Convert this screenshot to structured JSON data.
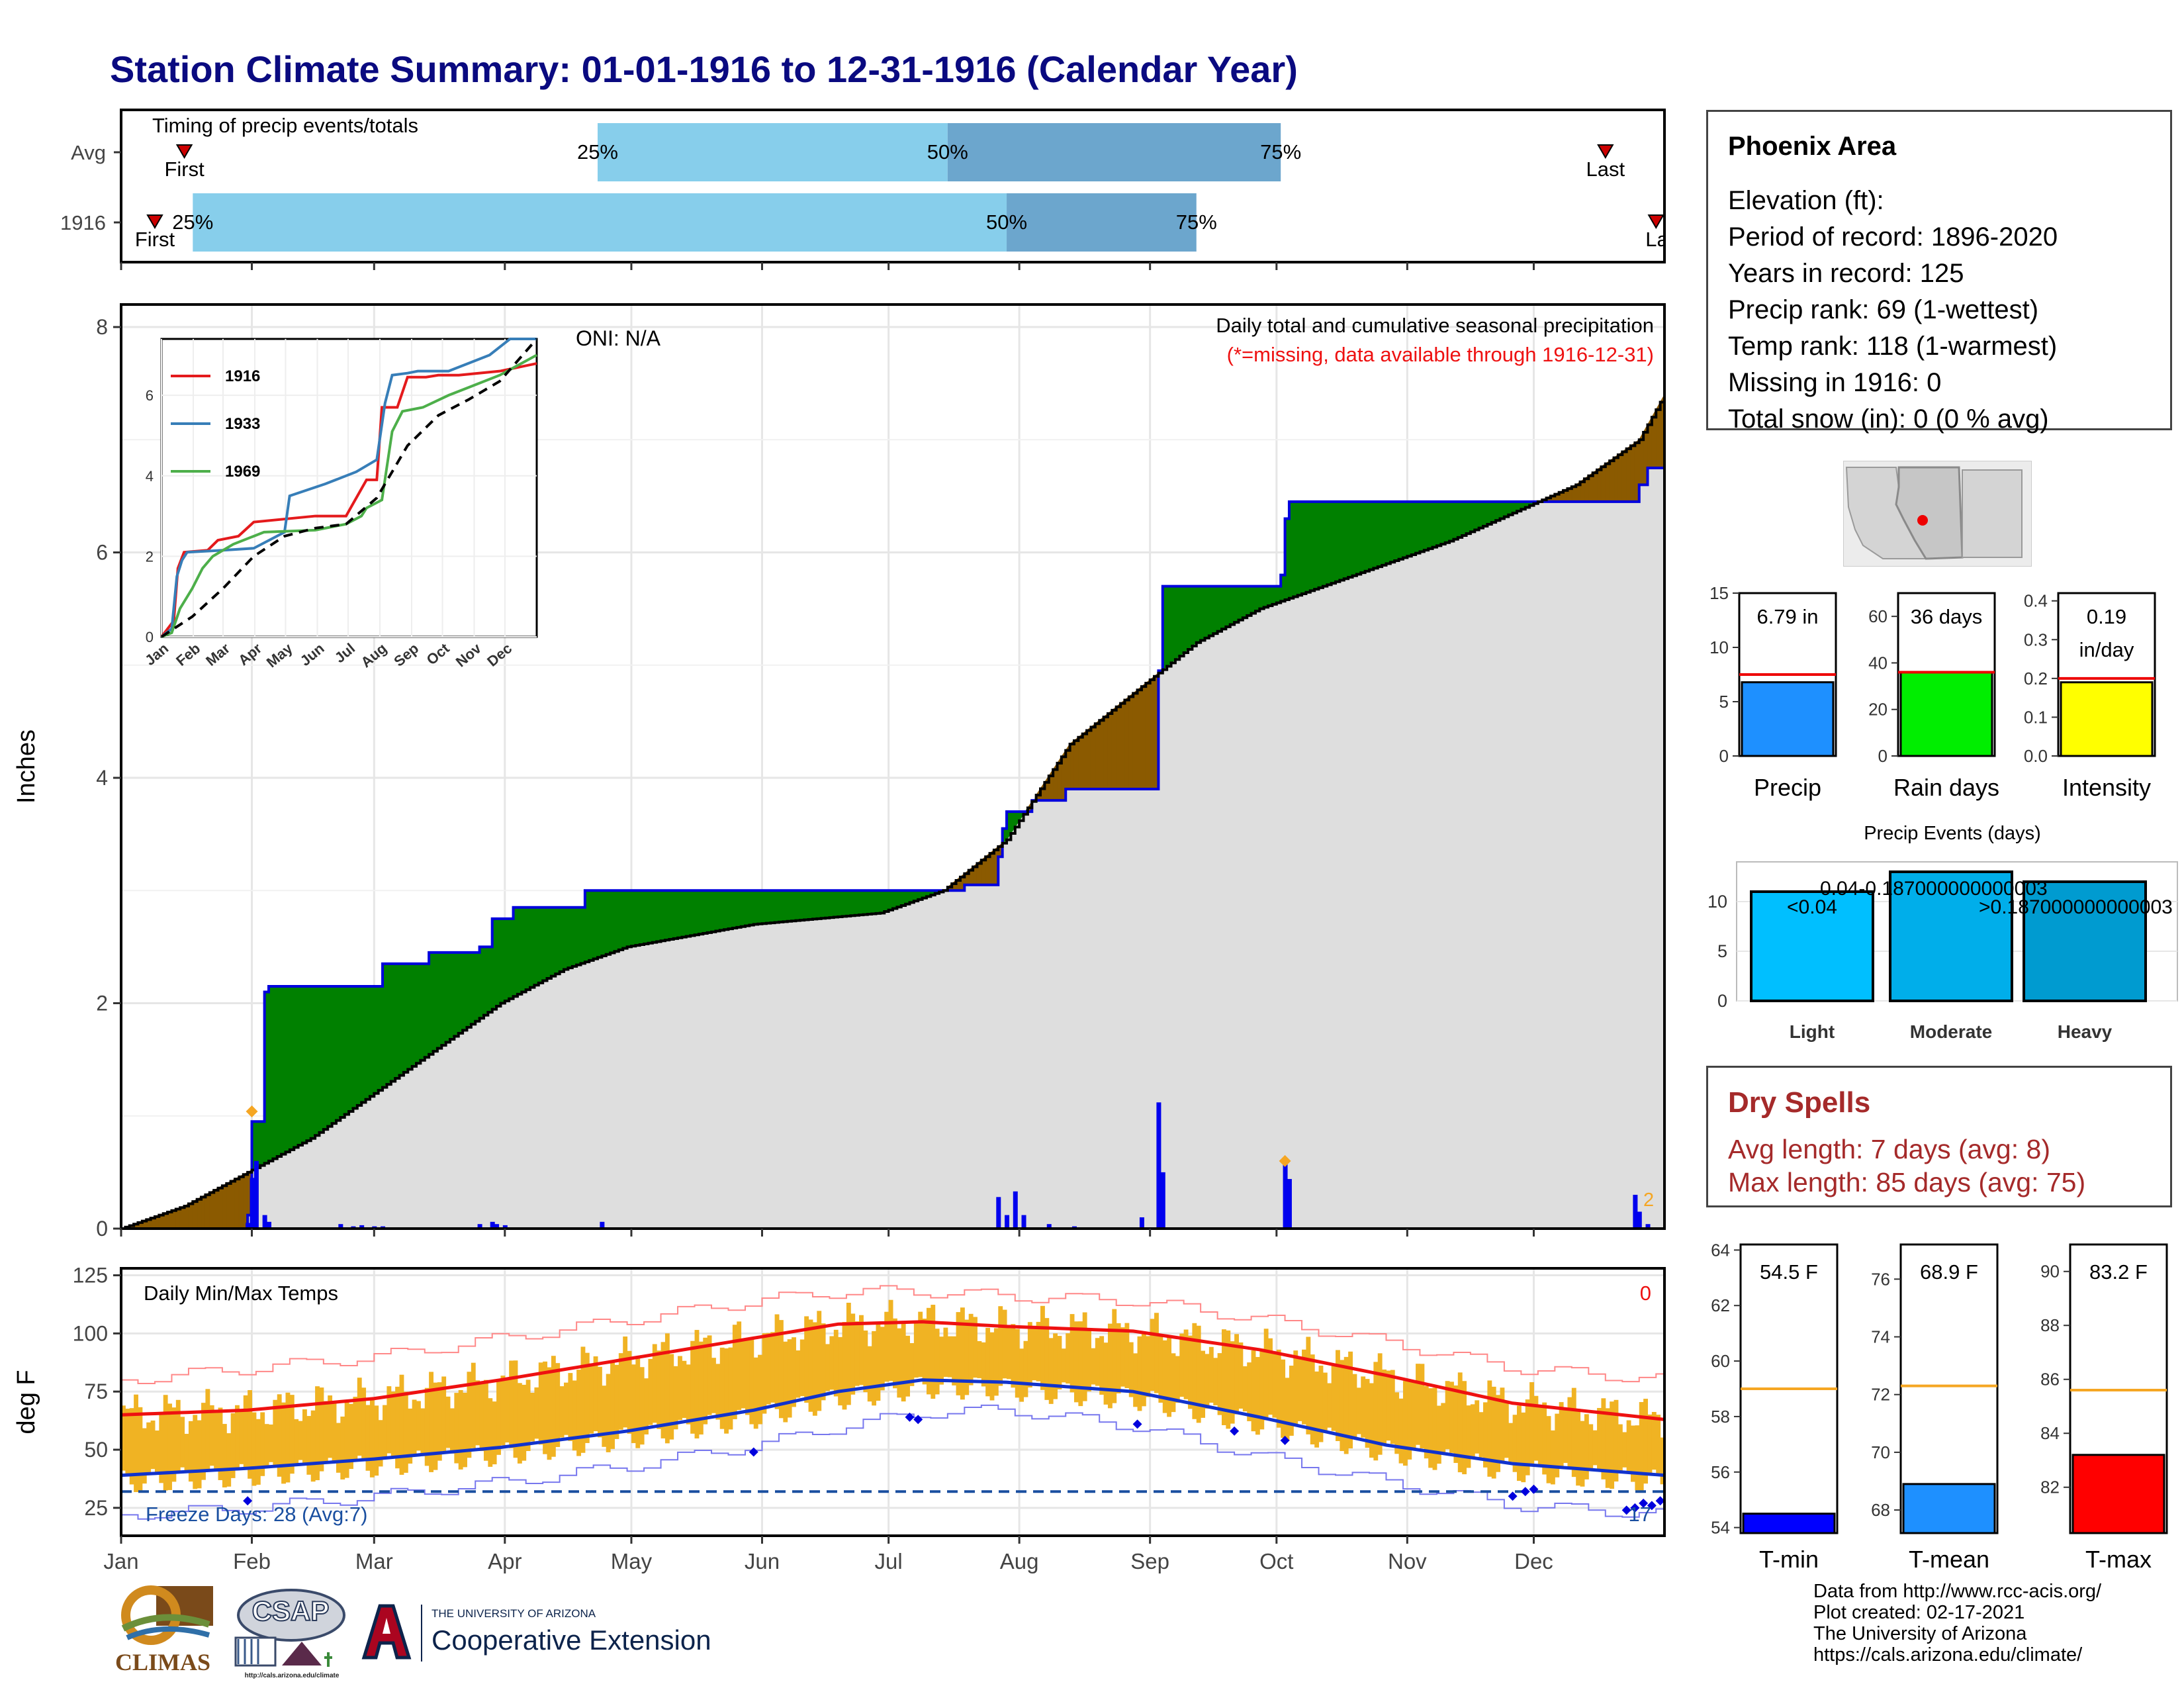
{
  "title": "Station Climate Summary: 01-01-1916 to 12-31-1916 (Calendar Year)",
  "timing": {
    "title": "Timing of precip events/totals",
    "rows": [
      {
        "label": "Avg",
        "first_day": 15,
        "p25_day": 113,
        "p50_day": 196,
        "p75_day": 275,
        "last_day": 352
      },
      {
        "label": "1916",
        "first_day": 8,
        "p25_day": 17,
        "p50_day": 210,
        "p75_day": 255,
        "last_day": 364
      }
    ],
    "first_label": "First",
    "last_label": "Last",
    "p25_label": "25%",
    "p50_label": "50%",
    "p75_label": "75%",
    "colors": {
      "early": "#87ceeb",
      "late": "#6ca6cd",
      "marker": "#cc0000"
    }
  },
  "months": [
    "Jan",
    "Feb",
    "Mar",
    "Apr",
    "May",
    "Jun",
    "Jul",
    "Aug",
    "Sep",
    "Oct",
    "Nov",
    "Dec"
  ],
  "precip_chart": {
    "ylabel": "Inches",
    "ylim": [
      0,
      8.2
    ],
    "yticks": [
      0,
      2,
      4,
      6,
      8
    ],
    "subtitle": "Daily total and cumulative seasonal precipitation",
    "missing_note": "(*=missing, data available through 1916-12-31)",
    "oni": "ONI: N/A",
    "end_label": "2",
    "colors": {
      "observed": "#0000dd",
      "above": "#008000",
      "below": "#8b5a00",
      "fill": "#dedede",
      "marker": "#f5a623"
    }
  },
  "inset": {
    "series": [
      {
        "name": "1916",
        "color": "#e41a1c"
      },
      {
        "name": "1933",
        "color": "#377eb8"
      },
      {
        "name": "1969",
        "color": "#4daf4a"
      }
    ],
    "yticks": [
      0,
      2,
      4,
      6
    ],
    "ylim": [
      0,
      7.4
    ]
  },
  "chart_data": [
    {
      "type": "line",
      "title": "Daily total and cumulative seasonal precipitation",
      "ylabel": "Inches",
      "x_unit": "day of year",
      "ylim": [
        0,
        8.2
      ],
      "series": [
        {
          "name": "1916 cumulative",
          "x": [
            0,
            30,
            31,
            34,
            35,
            60,
            62,
            69,
            73,
            80,
            85,
            88,
            93,
            96,
            110,
            130,
            175,
            182,
            198,
            200,
            208,
            209,
            210,
            216,
            218,
            224,
            245,
            246,
            247,
            250,
            268,
            275,
            276,
            277,
            307,
            327,
            333,
            359,
            360,
            362,
            366
          ],
          "y": [
            0,
            0.12,
            0.95,
            2.1,
            2.15,
            2.15,
            2.35,
            2.35,
            2.45,
            2.45,
            2.5,
            2.75,
            2.85,
            2.85,
            3.0,
            3.0,
            3.0,
            3.0,
            3.0,
            3.05,
            3.3,
            3.55,
            3.7,
            3.8,
            3.8,
            3.9,
            3.9,
            4.95,
            5.7,
            5.7,
            5.7,
            5.8,
            6.3,
            6.45,
            6.45,
            6.45,
            6.45,
            6.45,
            6.6,
            6.75,
            6.79
          ]
        },
        {
          "name": "Average cumulative",
          "x": [
            0,
            15,
            30,
            45,
            60,
            75,
            90,
            105,
            120,
            135,
            150,
            165,
            180,
            195,
            210,
            225,
            240,
            255,
            270,
            285,
            300,
            315,
            330,
            345,
            360,
            366
          ],
          "y": [
            0,
            0.2,
            0.5,
            0.8,
            1.2,
            1.6,
            2.0,
            2.3,
            2.5,
            2.6,
            2.7,
            2.75,
            2.8,
            3.0,
            3.45,
            4.3,
            4.75,
            5.2,
            5.5,
            5.7,
            5.9,
            6.1,
            6.35,
            6.6,
            7.0,
            7.4
          ]
        },
        {
          "name": "Daily precipitation",
          "x": [
            30,
            31,
            32,
            34,
            35,
            52,
            55,
            57,
            60,
            62,
            85,
            88,
            89,
            91,
            114,
            198,
            208,
            210,
            212,
            214,
            220,
            226,
            242,
            246,
            247,
            250,
            268,
            276,
            277,
            306,
            359,
            360,
            362
          ],
          "y": [
            0.05,
            0.45,
            0.6,
            0.12,
            0.06,
            0.04,
            0.02,
            0.03,
            0.02,
            0.02,
            0.04,
            0.06,
            0.04,
            0.03,
            0.06,
            0.01,
            0.28,
            0.12,
            0.33,
            0.12,
            0.04,
            0.02,
            0.1,
            1.12,
            0.5,
            0.01,
            0.01,
            0.58,
            0.44,
            0.01,
            0.3,
            0.15,
            0.04
          ]
        }
      ]
    },
    {
      "type": "line",
      "title": "Inset cumulative precipitation",
      "series": [
        {
          "name": "1916",
          "x": [
            0,
            12,
            16,
            22,
            45,
            55,
            75,
            90,
            150,
            180,
            200,
            210,
            215,
            230,
            240,
            250,
            258,
            270,
            290,
            330,
            366
          ],
          "y": [
            0,
            0.4,
            1.7,
            2.1,
            2.15,
            2.4,
            2.5,
            2.85,
            3.0,
            3.0,
            3.9,
            3.9,
            5.7,
            5.7,
            6.45,
            6.45,
            6.45,
            6.5,
            6.5,
            6.6,
            6.79
          ]
        },
        {
          "name": "1933",
          "x": [
            0,
            10,
            15,
            20,
            25,
            60,
            90,
            120,
            125,
            160,
            190,
            210,
            218,
            225,
            240,
            250,
            280,
            300,
            320,
            340,
            366
          ],
          "y": [
            0,
            0.2,
            1.5,
            1.9,
            2.1,
            2.15,
            2.2,
            2.6,
            3.5,
            3.8,
            4.1,
            4.4,
            5.8,
            6.5,
            6.55,
            6.6,
            6.6,
            6.8,
            7.0,
            7.4,
            7.4
          ]
        },
        {
          "name": "1969",
          "x": [
            0,
            10,
            18,
            30,
            40,
            50,
            70,
            90,
            100,
            150,
            180,
            195,
            200,
            215,
            225,
            235,
            255,
            280,
            300,
            330,
            366
          ],
          "y": [
            0,
            0.1,
            0.7,
            1.2,
            1.7,
            2.0,
            2.3,
            2.5,
            2.6,
            2.65,
            2.8,
            3.0,
            3.2,
            3.4,
            5.1,
            5.6,
            5.7,
            6.0,
            6.2,
            6.5,
            7.0
          ]
        },
        {
          "name": "Average",
          "x": [
            0,
            30,
            60,
            90,
            120,
            150,
            180,
            210,
            240,
            270,
            300,
            330,
            366
          ],
          "y": [
            0,
            0.5,
            1.2,
            2.0,
            2.5,
            2.7,
            2.8,
            3.45,
            4.75,
            5.5,
            5.9,
            6.35,
            7.4
          ]
        }
      ]
    },
    {
      "type": "line",
      "title": "Daily Min/Max Temps",
      "ylabel": "deg F",
      "ylim": [
        13,
        128
      ],
      "yticks": [
        25,
        50,
        75,
        100,
        125
      ],
      "freeze_line": 32,
      "series": [
        {
          "name": "Average max",
          "x": [
            0,
            30,
            60,
            90,
            120,
            150,
            170,
            190,
            210,
            240,
            270,
            300,
            330,
            366
          ],
          "y": [
            65,
            67,
            72,
            80,
            89,
            98,
            104,
            105,
            103,
            101,
            93,
            82,
            70,
            63
          ]
        },
        {
          "name": "Average min",
          "x": [
            0,
            30,
            60,
            90,
            120,
            150,
            170,
            190,
            210,
            240,
            270,
            300,
            330,
            366
          ],
          "y": [
            39,
            42,
            46,
            51,
            58,
            67,
            75,
            80,
            79,
            75,
            64,
            52,
            44,
            39
          ]
        },
        {
          "name": "Record max",
          "x": [
            0,
            30,
            60,
            90,
            120,
            150,
            170,
            190,
            210,
            240,
            270,
            300,
            330,
            366
          ],
          "y": [
            80,
            85,
            90,
            98,
            106,
            114,
            118,
            118,
            116,
            114,
            106,
            96,
            85,
            80
          ]
        },
        {
          "name": "Record min",
          "x": [
            0,
            30,
            60,
            90,
            120,
            150,
            170,
            190,
            210,
            240,
            270,
            300,
            330,
            366
          ],
          "y": [
            22,
            25,
            30,
            36,
            43,
            52,
            60,
            66,
            67,
            60,
            47,
            36,
            26,
            22
          ]
        }
      ]
    },
    {
      "type": "bar",
      "title": "Precip summary gauges",
      "categories": [
        "Precip",
        "Rain days",
        "Intensity"
      ],
      "values": [
        6.79,
        36,
        0.19
      ],
      "averages": [
        7.5,
        36,
        0.2
      ],
      "ylims": [
        [
          0,
          15
        ],
        [
          0,
          70
        ],
        [
          0,
          0.42
        ]
      ]
    },
    {
      "type": "bar",
      "title": "Precip Events (days)",
      "categories": [
        "Light",
        "Moderate",
        "Heavy"
      ],
      "values": [
        11,
        13,
        12
      ],
      "ylim": [
        0,
        14
      ]
    },
    {
      "type": "bar",
      "title": "Temperature summary gauges",
      "categories": [
        "T-min",
        "T-mean",
        "T-max"
      ],
      "values": [
        54.5,
        68.9,
        83.2
      ],
      "averages": [
        59.0,
        72.3,
        85.6
      ],
      "ylims": [
        [
          53.8,
          64.2
        ],
        [
          67.2,
          77.2
        ],
        [
          80.3,
          91
        ]
      ]
    }
  ],
  "temp_chart": {
    "title": "Daily Min/Max Temps",
    "ylabel": "deg F",
    "corner_count": "0",
    "freeze_label": "Freeze Days: 28 (Avg:7)",
    "end_count": "17",
    "colors": {
      "bar": "#f0b323",
      "avg_max": "#ee1111",
      "avg_min": "#1133cc",
      "rec_max": "#ff8888",
      "rec_min": "#7777ee",
      "freeze": "#1a4fa0"
    }
  },
  "station": {
    "name": "Phoenix Area",
    "elevation": "Elevation (ft):",
    "period": "Period of record: 1896-2020",
    "years": "Years in record: 125",
    "precip_rank": "Precip rank: 69 (1-wettest)",
    "temp_rank": "Temp rank: 118 (1-warmest)",
    "missing": "Missing in 1916: 0",
    "snow": "Total snow (in): 0 (0 % avg)"
  },
  "precip_gauges": [
    {
      "label": "Precip",
      "value_text": "6.79 in",
      "value": 6.79,
      "avg": 7.5,
      "ymax": 15,
      "yticks": [
        0,
        5,
        10,
        15
      ],
      "color": "#1e90ff"
    },
    {
      "label": "Rain days",
      "value_text": "36 days",
      "value": 36,
      "avg": 36,
      "ymax": 70,
      "yticks": [
        0,
        20,
        40,
        60
      ],
      "color": "#00ee00"
    },
    {
      "label": "Intensity",
      "value_text": "0.19",
      "value_text2": "in/day",
      "value": 0.19,
      "avg": 0.2,
      "ymax": 0.42,
      "yticks": [
        "0.0",
        "0.1",
        "0.2",
        "0.3",
        "0.4"
      ],
      "color": "#ffff00"
    }
  ],
  "events": {
    "title": "Precip Events (days)",
    "bars": [
      {
        "label": "Light",
        "value": 11,
        "top_text": "<0.04",
        "color": "#00bfff"
      },
      {
        "label": "Moderate",
        "value": 13,
        "top_text": "0.04-0.187000000000003",
        "color": "#00aeea"
      },
      {
        "label": "Heavy",
        "value": 12,
        "top_text": ">0.187000000000003",
        "color": "#009bd0"
      }
    ],
    "yticks": [
      0,
      5,
      10
    ]
  },
  "dry_spells": {
    "title": "Dry Spells",
    "avg": "Avg length: 7 days (avg: 8)",
    "max": "Max length: 85 days (avg: 75)",
    "color": "#a52a2a"
  },
  "temp_gauges": [
    {
      "label": "T-min",
      "value_text": "54.5 F",
      "value": 54.5,
      "avg": 59.0,
      "ymin": 53.8,
      "ymax": 64.2,
      "yticks": [
        54,
        56,
        58,
        60,
        62,
        64
      ],
      "color": "#0000ff"
    },
    {
      "label": "T-mean",
      "value_text": "68.9 F",
      "value": 68.9,
      "avg": 72.3,
      "ymin": 67.2,
      "ymax": 77.2,
      "yticks": [
        68,
        70,
        72,
        74,
        76
      ],
      "color": "#1e90ff"
    },
    {
      "label": "T-max",
      "value_text": "83.2 F",
      "value": 83.2,
      "avg": 85.6,
      "ymin": 80.3,
      "ymax": 91,
      "yticks": [
        82,
        84,
        86,
        88,
        90
      ],
      "color": "#ff0000"
    }
  ],
  "footer": {
    "line1": "Data from http://www.rcc-acis.org/",
    "line2": "Plot created: 02-17-2021",
    "line3": "The University of Arizona",
    "line4": "https://cals.arizona.edu/climate/"
  },
  "logos": {
    "climas": "CLIMAS",
    "csap": "CSAP",
    "csap_url": "http://cals.arizona.edu/climate",
    "ua_small": "THE UNIVERSITY OF ARIZONA",
    "coop": "Cooperative Extension"
  }
}
